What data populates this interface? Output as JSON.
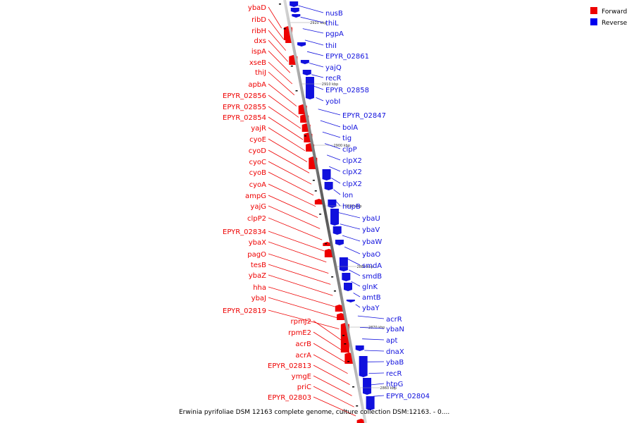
{
  "caption": "Erwinia pyrifoliae DSM 12163 complete genome, culture collection DSM:12163. - 0....",
  "legend": [
    {
      "label": "Forward",
      "color": "#ee0000"
    },
    {
      "label": "Reverse",
      "color": "#0000ee"
    }
  ],
  "colors": {
    "forward": "#ee0000",
    "reverse": "#1010dd",
    "axis": "#777777"
  },
  "ticks": [
    "2920 kbp",
    "2910 kbp",
    "2900 kbp",
    "2890 kbp",
    "2880 kbp",
    "2870 kbp",
    "2860 kbp"
  ],
  "forward_labels": [
    "ybaD",
    "ribD",
    "ribH",
    "dxs",
    "ispA",
    "xseB",
    "thiJ",
    "apbA",
    "EPYR_02856",
    "EPYR_02855",
    "EPYR_02854",
    "yajR",
    "cyoE",
    "cyoD",
    "cyoC",
    "cyoB",
    "cyoA",
    "ampG",
    "yajG",
    "clpP2",
    "EPYR_02834",
    "ybaX",
    "pagO",
    "tesB",
    "ybaZ",
    "hha",
    "ybaJ",
    "EPYR_02819",
    "rpmJ2",
    "rpmE2",
    "acrB",
    "acrA",
    "EPYR_02813",
    "ymgE",
    "priC",
    "EPYR_02803"
  ],
  "reverse_labels": [
    "nusB",
    "thiL",
    "pgpA",
    "thiI",
    "EPYR_02861",
    "yajQ",
    "recR",
    "EPYR_02858",
    "yobI",
    "EPYR_02847",
    "bolA",
    "tig",
    "clpP",
    "clpX2",
    "clpX2",
    "clpX2",
    "lon",
    "hupB",
    "ybaU",
    "ybaV",
    "ybaW",
    "ybaO",
    "smdA",
    "smdB",
    "glnK",
    "amtB",
    "ybaY",
    "acrR",
    "ybaN",
    "apt",
    "dnaX",
    "ybaB",
    "recR",
    "htpG",
    "EPYR_02804"
  ]
}
